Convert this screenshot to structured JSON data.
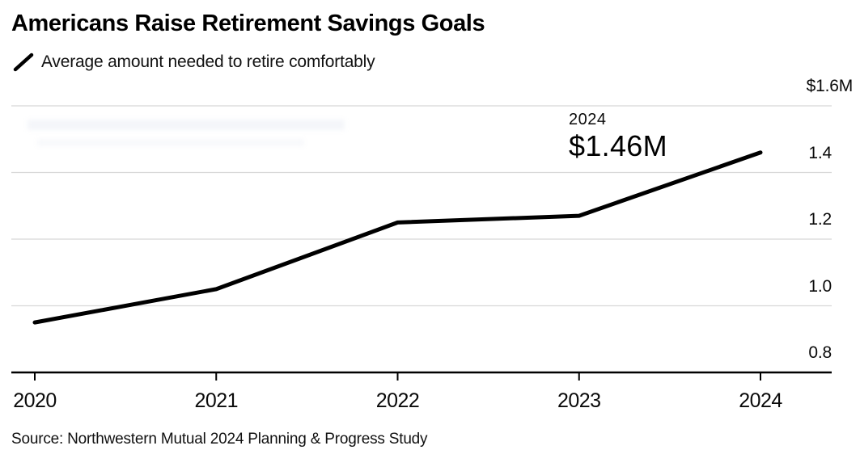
{
  "header": {
    "title": "Americans Raise Retirement Savings Goals",
    "subtitle": "Average amount needed to retire comfortably"
  },
  "source": "Source: Northwestern Mutual 2024 Planning & Progress Study",
  "colors": {
    "background": "#ffffff",
    "line": "#000000",
    "grid": "#d8d8d8",
    "axis": "#000000",
    "title_text": "#000000",
    "body_text": "#111111"
  },
  "chart_data": {
    "type": "line",
    "title": "Americans Raise Retirement Savings Goals",
    "subtitle": "Average amount needed to retire comfortably",
    "x": [
      2020,
      2021,
      2022,
      2023,
      2024
    ],
    "xtick_labels": [
      "2020",
      "2021",
      "2022",
      "2023",
      "2024"
    ],
    "series": [
      {
        "name": "Average amount needed to retire comfortably",
        "values": [
          0.95,
          1.05,
          1.25,
          1.27,
          1.46
        ]
      }
    ],
    "unit": "millions of USD",
    "ylim": [
      0.8,
      1.6
    ],
    "yticks": [
      0.8,
      1.0,
      1.2,
      1.4,
      1.6
    ],
    "ytick_labels": [
      "0.8",
      "1.0",
      "1.2",
      "1.4",
      "$1.6M"
    ],
    "grid": "horizontal",
    "y_axis_side": "right",
    "legend_position": "top-left",
    "annotation": {
      "label": "2024",
      "value": "$1.46M",
      "x": 2024,
      "y": 1.46
    }
  }
}
